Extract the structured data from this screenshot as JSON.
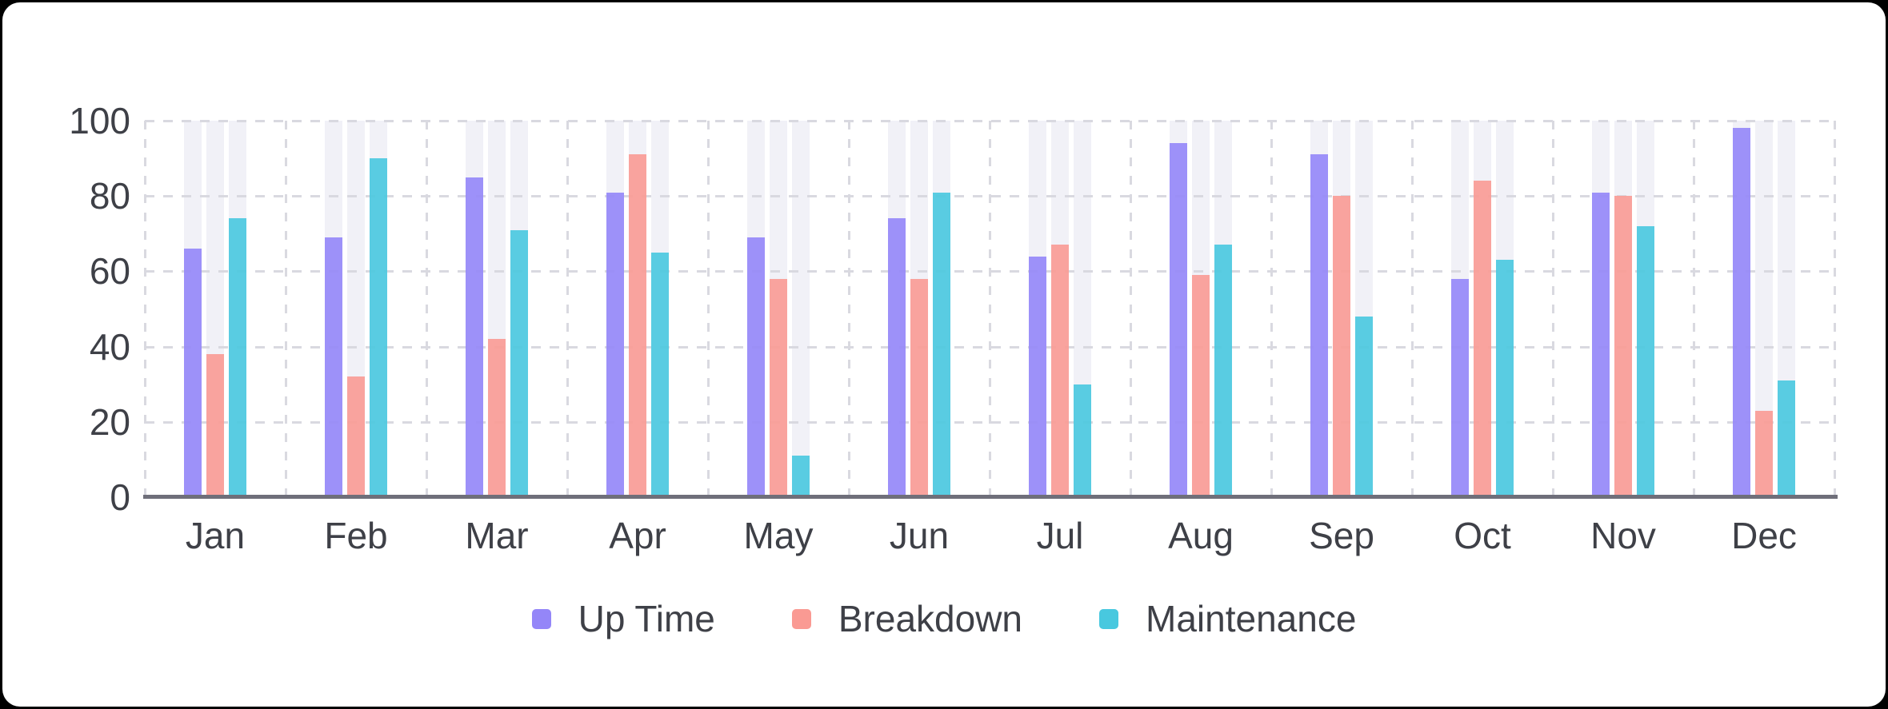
{
  "page": {
    "background": "#000000",
    "card_background": "#ffffff"
  },
  "chart_data": {
    "type": "bar",
    "title": "",
    "categories": [
      "Jan",
      "Feb",
      "Mar",
      "Apr",
      "May",
      "Jun",
      "Jul",
      "Aug",
      "Sep",
      "Oct",
      "Nov",
      "Dec"
    ],
    "series": [
      {
        "name": "Up Time",
        "color": "#9486F8",
        "values": [
          66,
          69,
          85,
          81,
          69,
          74,
          64,
          94,
          91,
          58,
          81,
          98
        ]
      },
      {
        "name": "Breakdown",
        "color": "#FA9A93",
        "values": [
          38,
          32,
          42,
          91,
          58,
          58,
          67,
          59,
          80,
          84,
          80,
          23
        ]
      },
      {
        "name": "Maintenance",
        "color": "#48C8DF",
        "values": [
          74,
          90,
          71,
          65,
          11,
          81,
          30,
          67,
          48,
          63,
          72,
          31
        ]
      }
    ],
    "y_ticks": [
      0,
      20,
      40,
      60,
      80,
      100
    ],
    "ylim": [
      0,
      100
    ],
    "xlabel": "",
    "ylabel": "",
    "grid": "dashed",
    "grid_color": "#d9d9e0",
    "axis_line_color": "#6f6f7a",
    "track_color": "#f1f1f7",
    "label_color": "#3e4047",
    "legend_position": "bottom"
  }
}
